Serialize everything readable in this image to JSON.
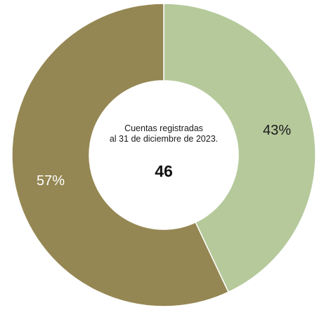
{
  "chart_data": {
    "type": "pie",
    "style": "donut",
    "categories": [
      "",
      ""
    ],
    "values": [
      43,
      57
    ],
    "labels": [
      "43%",
      "57%"
    ],
    "colors": [
      "#b5c99b",
      "#958753"
    ],
    "label_colors": [
      "#1a1a1a",
      "#ffffff"
    ],
    "start": "top",
    "direction": "clockwise",
    "center_text": {
      "line1": "Cuentas registradas",
      "line2": "al 31 de diciembre de 2023.",
      "total": "46"
    }
  }
}
